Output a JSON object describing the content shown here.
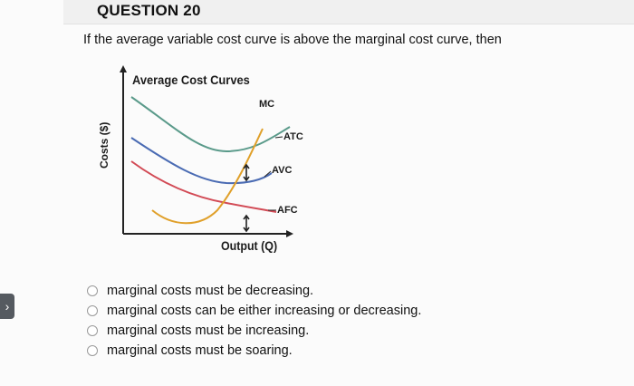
{
  "question": {
    "title": "QUESTION 20",
    "text": "If the average variable cost curve is above the marginal cost curve, then"
  },
  "figure": {
    "title": "Average Cost Curves",
    "ylabel": "Costs ($)",
    "xlabel": "Output (Q)",
    "curve_labels": {
      "mc": "MC",
      "atc": "ATC",
      "avc": "AVC",
      "afc": "AFC"
    },
    "colors": {
      "atc": "#5a9a8a",
      "avc": "#4a6bb3",
      "afc": "#d24a55",
      "mc": "#e0a02a",
      "axis": "#222222"
    }
  },
  "options": [
    {
      "label": "marginal costs must be decreasing."
    },
    {
      "label": "marginal costs can be either increasing or decreasing."
    },
    {
      "label": "marginal costs must be increasing."
    },
    {
      "label": "marginal costs must be soaring."
    }
  ],
  "nav": {
    "side_arrow_icon": "chevron-right-icon",
    "side_arrow_glyph": "›"
  }
}
